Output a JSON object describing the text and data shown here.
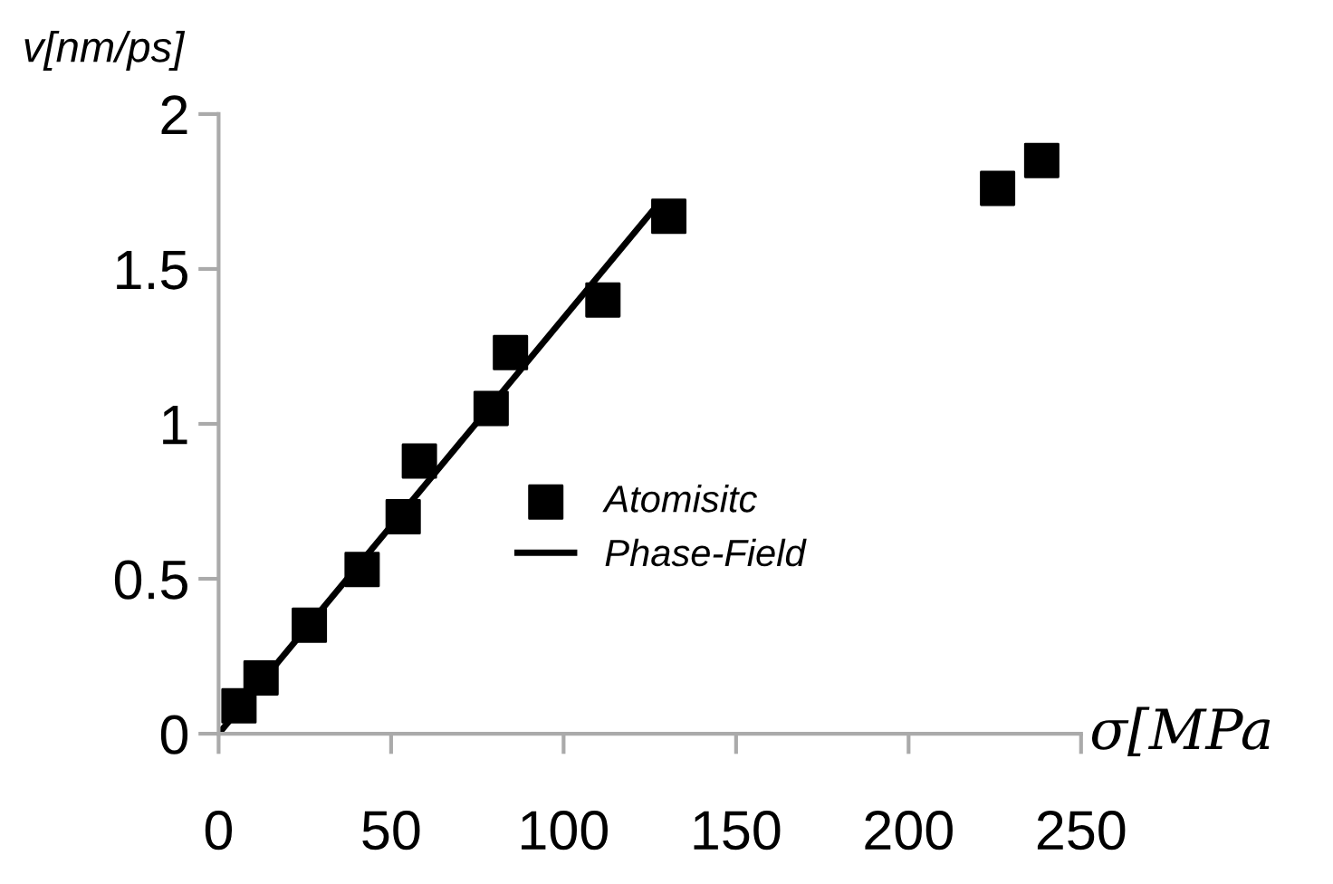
{
  "chart_data": {
    "type": "scatter",
    "xlabel": "σ[MPa",
    "ylabel": "v[nm/ps]",
    "xlim": [
      0,
      250
    ],
    "xticks": [
      0,
      50,
      100,
      150,
      200,
      250
    ],
    "ylim": [
      0,
      2
    ],
    "yticks": [
      0,
      0.5,
      1,
      1.5,
      2
    ],
    "grid": false,
    "legend": "right",
    "series": [
      {
        "name": "Atomisitc",
        "marker": "square",
        "color": "#000000",
        "x": [
          5.9,
          12.3,
          26.3,
          41.6,
          53.5,
          58.2,
          79,
          84.6,
          111.4,
          130.5,
          225.8,
          238.6
        ],
        "values": [
          0.09,
          0.18,
          0.35,
          0.53,
          0.7,
          0.88,
          1.05,
          1.23,
          1.4,
          1.67,
          1.76,
          1.85
        ]
      },
      {
        "name": "Phase-Field",
        "type": "line",
        "color": "#000000",
        "line_style": "solid",
        "x": [
          0,
          126.7
        ],
        "values": [
          0,
          1.7
        ]
      }
    ]
  }
}
